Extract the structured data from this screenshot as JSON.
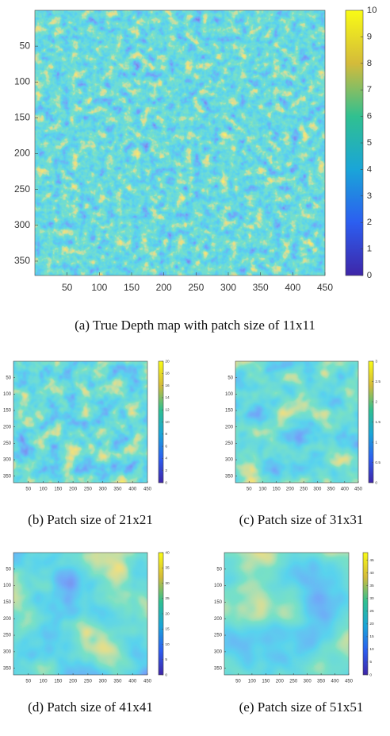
{
  "panels": [
    {
      "caption": "(a) True Depth map with patch size of 11x11",
      "xlim": [
        0,
        450
      ],
      "ylim": [
        0,
        370
      ],
      "xticks": [
        50,
        100,
        150,
        200,
        250,
        300,
        350,
        400,
        450
      ],
      "yticks": [
        50,
        100,
        150,
        200,
        250,
        300,
        350
      ],
      "clim": [
        0,
        10
      ],
      "cticks": [
        0,
        1,
        2,
        3,
        4,
        5,
        6,
        7,
        8,
        9,
        10
      ]
    },
    {
      "caption": "(b) Patch size of 21x21",
      "xlim": [
        0,
        450
      ],
      "ylim": [
        0,
        370
      ],
      "xticks": [
        50,
        100,
        150,
        200,
        250,
        300,
        350,
        400,
        450
      ],
      "yticks": [
        50,
        100,
        150,
        200,
        250,
        300,
        350
      ],
      "clim": [
        0,
        20
      ],
      "cticks": [
        0,
        2,
        4,
        6,
        8,
        10,
        12,
        14,
        16,
        18,
        20
      ]
    },
    {
      "caption": "(c) Patch size of 31x31",
      "xlim": [
        0,
        450
      ],
      "ylim": [
        0,
        370
      ],
      "xticks": [
        50,
        100,
        150,
        200,
        250,
        300,
        350,
        400,
        450
      ],
      "yticks": [
        50,
        100,
        150,
        200,
        250,
        300,
        350
      ],
      "clim": [
        0,
        3
      ],
      "cticks": [
        0,
        0.5,
        1,
        1.5,
        2,
        2.5,
        3
      ]
    },
    {
      "caption": "(d) Patch size of 41x41",
      "xlim": [
        0,
        450
      ],
      "ylim": [
        0,
        370
      ],
      "xticks": [
        50,
        100,
        150,
        200,
        250,
        300,
        350,
        400,
        450
      ],
      "yticks": [
        50,
        100,
        150,
        200,
        250,
        300,
        350
      ],
      "clim": [
        0,
        40
      ],
      "cticks": [
        0,
        5,
        10,
        15,
        20,
        25,
        30,
        35,
        40
      ]
    },
    {
      "caption": "(e) Patch size of 51x51",
      "xlim": [
        0,
        450
      ],
      "ylim": [
        0,
        370
      ],
      "xticks": [
        50,
        100,
        150,
        200,
        250,
        300,
        350,
        400,
        450
      ],
      "yticks": [
        50,
        100,
        150,
        200,
        250,
        300,
        350
      ],
      "clim": [
        0,
        48
      ],
      "cticks": [
        0,
        5,
        10,
        15,
        20,
        25,
        30,
        35,
        40,
        45
      ]
    }
  ]
}
